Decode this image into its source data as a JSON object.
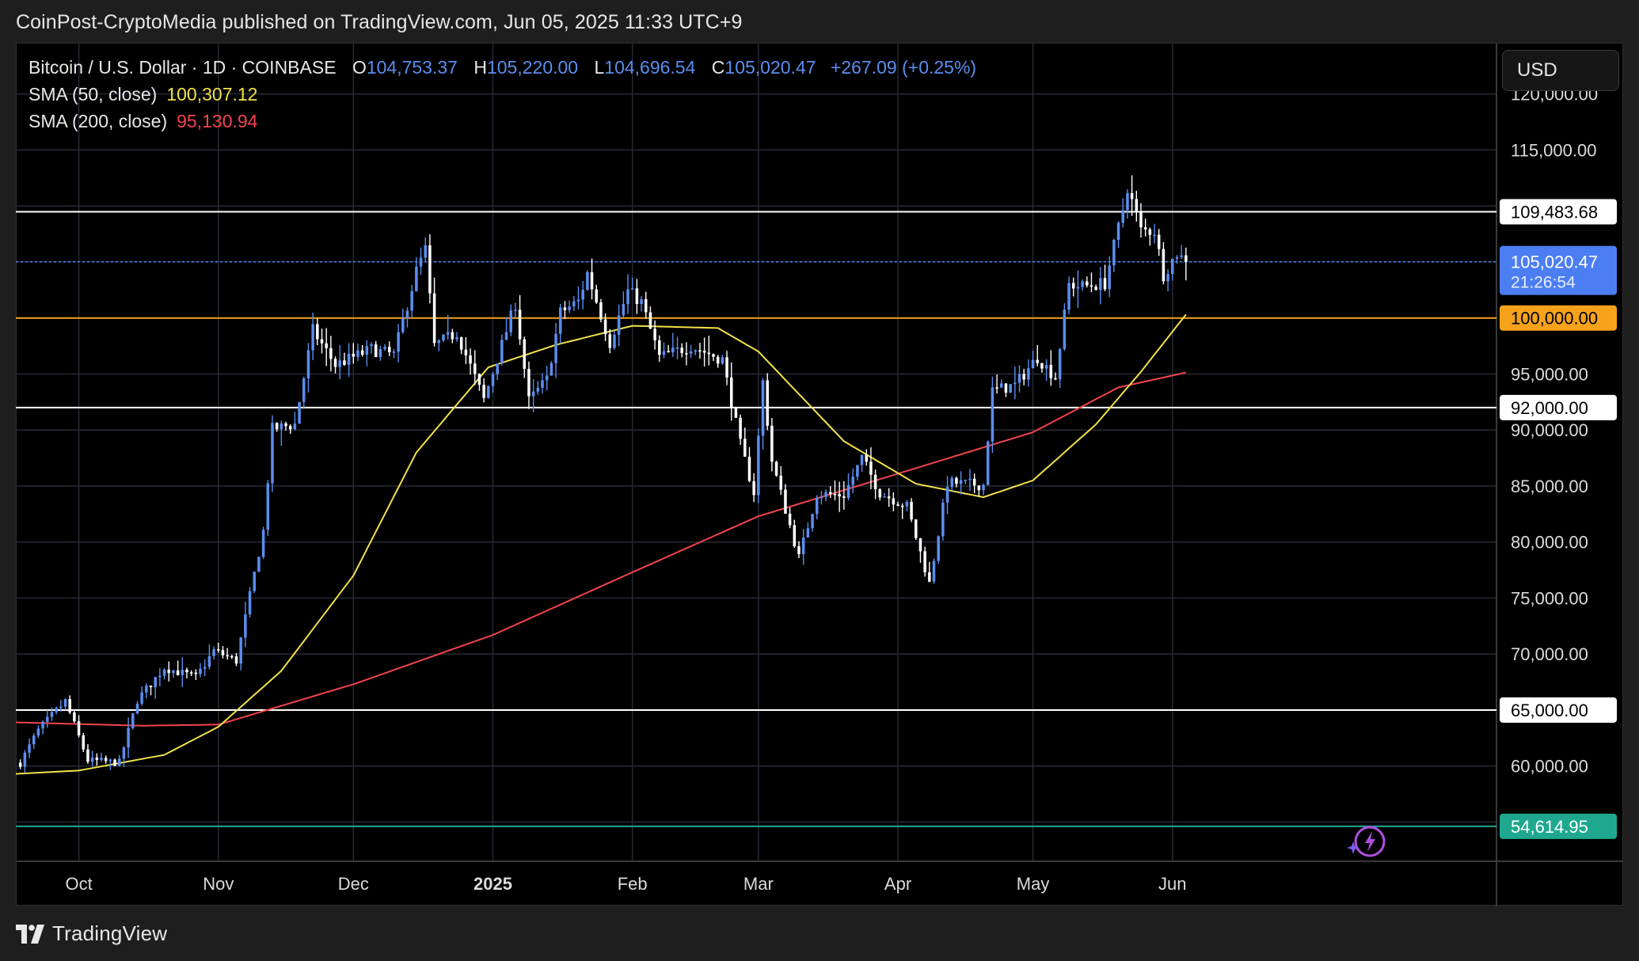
{
  "publisher_line": "CoinPost-CryptoMedia published on TradingView.com, Jun 05, 2025 11:33 UTC+9",
  "footer": {
    "brand": "TradingView"
  },
  "currency_button": "USD",
  "legend": {
    "symbol": "Bitcoin / U.S. Dollar · 1D · COINBASE",
    "open_key": "O",
    "open": "104,753.37",
    "high_key": "H",
    "high": "105,220.00",
    "low_key": "L",
    "low": "104,696.54",
    "close_key": "C",
    "close": "105,020.47",
    "change": "+267.09 (+0.25%)",
    "sma50_label": "SMA (50, close)",
    "sma50_value": "100,307.12",
    "sma200_label": "SMA (200, close)",
    "sma200_value": "95,130.94"
  },
  "colors": {
    "background": "#000000",
    "bull_candle": "#5b8def",
    "bear_candle": "#ffffff",
    "sma50": "#f2e14a",
    "sma200": "#f2444e",
    "level_white": "#ffffff",
    "level_orange": "#f7a21b",
    "level_teal": "#1fa88f",
    "current_price": "#4c7ef3"
  },
  "chart_data": {
    "type": "candlestick",
    "interval": "1D",
    "x_tick_labels": [
      "Oct",
      "Nov",
      "Dec",
      "2025",
      "Feb",
      "Mar",
      "Apr",
      "May",
      "Jun"
    ],
    "x_tick_dates": [
      "2024-10-01",
      "2024-11-01",
      "2024-12-01",
      "2025-01-01",
      "2025-02-01",
      "2025-03-01",
      "2025-04-01",
      "2025-05-01",
      "2025-06-01"
    ],
    "x_range": [
      "2024-09-17",
      "2025-08-12"
    ],
    "y_range": [
      51500,
      124500
    ],
    "y_tick_labels": [
      "120,000.00",
      "115,000.00",
      "90,000.00",
      "85,000.00",
      "80,000.00",
      "75,000.00",
      "70,000.00",
      "60,000.00"
    ],
    "y_tick_values": [
      120000,
      115000,
      90000,
      85000,
      80000,
      75000,
      70000,
      60000
    ],
    "grid": true,
    "price_levels": [
      {
        "value": 109483.68,
        "label": "109,483.68",
        "style": "white"
      },
      {
        "value": 100000,
        "label": "100,000.00",
        "style": "orange"
      },
      {
        "value": 95000,
        "label": "95,000.00",
        "style": "plain"
      },
      {
        "value": 92000,
        "label": "92,000.00",
        "style": "white"
      },
      {
        "value": 65000,
        "label": "65,000.00",
        "style": "white"
      },
      {
        "value": 54614.95,
        "label": "54,614.95",
        "style": "teal"
      }
    ],
    "current_price": {
      "value": 105020.47,
      "label": "105,020.47",
      "countdown": "21:26:54"
    },
    "last_date": "2025-06-04",
    "close_anchors": [
      [
        "2024-09-18",
        60300
      ],
      [
        "2024-09-22",
        63200
      ],
      [
        "2024-09-28",
        65800
      ],
      [
        "2024-10-03",
        60500
      ],
      [
        "2024-10-10",
        60300
      ],
      [
        "2024-10-14",
        65900
      ],
      [
        "2024-10-20",
        68800
      ],
      [
        "2024-10-27",
        67900
      ],
      [
        "2024-10-31",
        70300
      ],
      [
        "2024-11-05",
        69400
      ],
      [
        "2024-11-11",
        81000
      ],
      [
        "2024-11-13",
        90100
      ],
      [
        "2024-11-18",
        90500
      ],
      [
        "2024-11-22",
        98900
      ],
      [
        "2024-11-27",
        95800
      ],
      [
        "2024-12-05",
        97200
      ],
      [
        "2024-12-10",
        96700
      ],
      [
        "2024-12-15",
        104200
      ],
      [
        "2024-12-17",
        106100
      ],
      [
        "2024-12-19",
        97500
      ],
      [
        "2024-12-24",
        98700
      ],
      [
        "2024-12-30",
        92700
      ],
      [
        "2025-01-06",
        101300
      ],
      [
        "2025-01-09",
        92600
      ],
      [
        "2025-01-13",
        94500
      ],
      [
        "2025-01-16",
        100500
      ],
      [
        "2025-01-20",
        101500
      ],
      [
        "2025-01-22",
        104000
      ],
      [
        "2025-01-27",
        97800
      ],
      [
        "2025-01-31",
        102400
      ],
      [
        "2025-02-03",
        101400
      ],
      [
        "2025-02-07",
        96500
      ],
      [
        "2025-02-14",
        97500
      ],
      [
        "2025-02-21",
        96300
      ],
      [
        "2025-02-25",
        88700
      ],
      [
        "2025-02-28",
        84400
      ],
      [
        "2025-03-02",
        94300
      ],
      [
        "2025-03-04",
        87200
      ],
      [
        "2025-03-10",
        78600
      ],
      [
        "2025-03-14",
        84300
      ],
      [
        "2025-03-20",
        84200
      ],
      [
        "2025-03-24",
        87500
      ],
      [
        "2025-03-28",
        84400
      ],
      [
        "2025-04-03",
        83200
      ],
      [
        "2025-04-08",
        76300
      ],
      [
        "2025-04-12",
        85300
      ],
      [
        "2025-04-20",
        85100
      ],
      [
        "2025-04-22",
        93500
      ],
      [
        "2025-04-27",
        94000
      ],
      [
        "2025-05-02",
        96500
      ],
      [
        "2025-05-06",
        94700
      ],
      [
        "2025-05-09",
        103000
      ],
      [
        "2025-05-12",
        102800
      ],
      [
        "2025-05-17",
        103100
      ],
      [
        "2025-05-21",
        109700
      ],
      [
        "2025-05-22",
        111700
      ],
      [
        "2025-05-25",
        107800
      ],
      [
        "2025-05-28",
        107800
      ],
      [
        "2025-05-30",
        103900
      ],
      [
        "2025-06-02",
        105800
      ],
      [
        "2025-06-04",
        105020
      ]
    ],
    "sma50_anchors": [
      [
        "2024-09-17",
        59300
      ],
      [
        "2024-10-01",
        59600
      ],
      [
        "2024-10-20",
        61000
      ],
      [
        "2024-11-01",
        63500
      ],
      [
        "2024-11-15",
        68500
      ],
      [
        "2024-12-01",
        77000
      ],
      [
        "2024-12-15",
        88000
      ],
      [
        "2024-12-31",
        95600
      ],
      [
        "2025-01-15",
        97600
      ],
      [
        "2025-02-01",
        99300
      ],
      [
        "2025-02-20",
        99100
      ],
      [
        "2025-03-01",
        97000
      ],
      [
        "2025-03-20",
        89000
      ],
      [
        "2025-04-05",
        85200
      ],
      [
        "2025-04-20",
        84000
      ],
      [
        "2025-05-01",
        85500
      ],
      [
        "2025-05-15",
        90500
      ],
      [
        "2025-05-25",
        95200
      ],
      [
        "2025-06-04",
        100307
      ]
    ],
    "sma200_anchors": [
      [
        "2024-09-17",
        63900
      ],
      [
        "2024-10-15",
        63600
      ],
      [
        "2024-11-01",
        63700
      ],
      [
        "2024-12-01",
        67300
      ],
      [
        "2025-01-01",
        71700
      ],
      [
        "2025-02-01",
        77300
      ],
      [
        "2025-03-01",
        82300
      ],
      [
        "2025-04-01",
        86100
      ],
      [
        "2025-05-01",
        89800
      ],
      [
        "2025-05-20",
        93800
      ],
      [
        "2025-06-04",
        95131
      ]
    ]
  }
}
